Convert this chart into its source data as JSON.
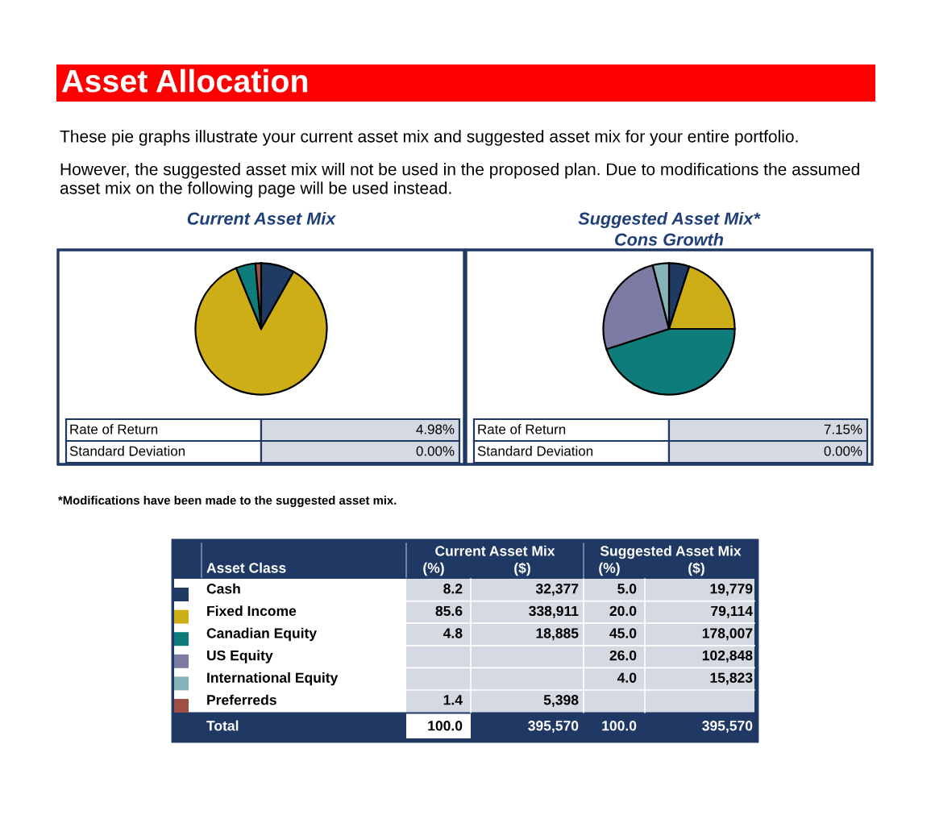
{
  "chart_data": [
    {
      "type": "other",
      "title": "Asset Allocation",
      "annotations": [
        "These pie graphs illustrate your current asset mix and suggested asset mix for your entire portfolio.",
        "However, the suggested asset mix will not be used in the proposed plan. Due to modifications the assumed asset mix on the following page will be used instead.",
        "*Modifications have been made to the suggested asset mix."
      ]
    },
    {
      "type": "pie",
      "categories": [
        "Cash",
        "Fixed Income",
        "Canadian Equity",
        "US Equity",
        "International Equity",
        "Preferreds"
      ],
      "colors": [
        "#1f3b63",
        "#cdae17",
        "#0e7c7b",
        "#7b7ba3",
        "#86b3b8",
        "#a04f45"
      ],
      "series": [
        {
          "name": "Current Asset Mix",
          "values": [
            8.2,
            85.6,
            4.8,
            null,
            null,
            1.4
          ]
        },
        {
          "name": "Suggested Asset Mix*",
          "values": [
            5,
            20,
            45,
            26,
            4,
            null
          ],
          "value_labels": [
            "5.0",
            "20.0",
            "45.0",
            "26.0",
            "4.0",
            null
          ]
        }
      ],
      "data_labels": true,
      "legend": "bottom",
      "legend_title": "Asset Class",
      "annotations": [
        "Cons Growth",
        "Rate of Return",
        "4.98%",
        "Standard Deviation",
        "0.00%",
        "Rate of Return",
        "7.15%",
        "Standard Deviation",
        "0.00%",
        "Current Asset Mix",
        "(%)",
        "($)",
        "Suggested Asset Mix",
        "(%)",
        "($)",
        "Total",
        "100.0",
        "395,570",
        "100.0",
        "395,570",
        "32,377",
        "338,911",
        "18,885",
        "5,398",
        "19,779",
        "79,114",
        "178,007",
        "102,848",
        "15,823"
      ]
    }
  ]
}
